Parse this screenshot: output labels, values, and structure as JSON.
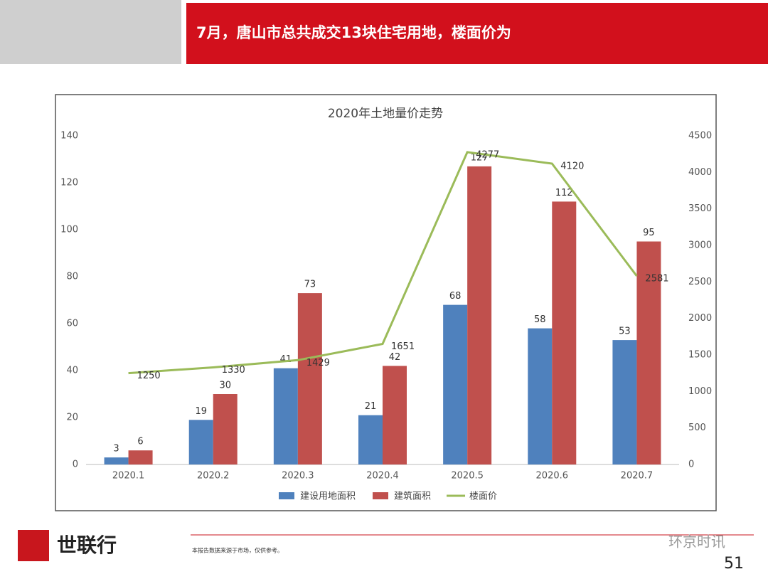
{
  "header": {
    "title": "7月，唐山市总共成交13块住宅用地，楼面价为"
  },
  "chart_data": {
    "type": "bar",
    "title": "2020年土地量价走势",
    "categories": [
      "2020.1",
      "2020.2",
      "2020.3",
      "2020.4",
      "2020.5",
      "2020.6",
      "2020.7"
    ],
    "series": [
      {
        "name": "建设用地面积",
        "type": "bar",
        "color": "#4f81bd",
        "values": [
          3,
          19,
          41,
          21,
          68,
          58,
          53
        ]
      },
      {
        "name": "建筑面积",
        "type": "bar",
        "color": "#c0504d",
        "values": [
          6,
          30,
          73,
          42,
          127,
          112,
          95
        ]
      },
      {
        "name": "楼面价",
        "type": "line",
        "axis": "y2",
        "color": "#9bbb59",
        "values": [
          1250,
          1330,
          1429,
          1651,
          4277,
          4120,
          2581
        ]
      }
    ],
    "ylim": [
      0,
      140
    ],
    "yticks": [
      0,
      20,
      40,
      60,
      80,
      100,
      120,
      140
    ],
    "y2lim": [
      0,
      4500
    ],
    "y2ticks": [
      0,
      500,
      1000,
      1500,
      2000,
      2500,
      3000,
      3500,
      4000,
      4500
    ],
    "grid": false,
    "legend": "bottom"
  },
  "footer": {
    "brand": "世联行",
    "note": "本报告数据来源于市场，仅供参考。",
    "page": "51",
    "watermark": "环京时讯"
  }
}
